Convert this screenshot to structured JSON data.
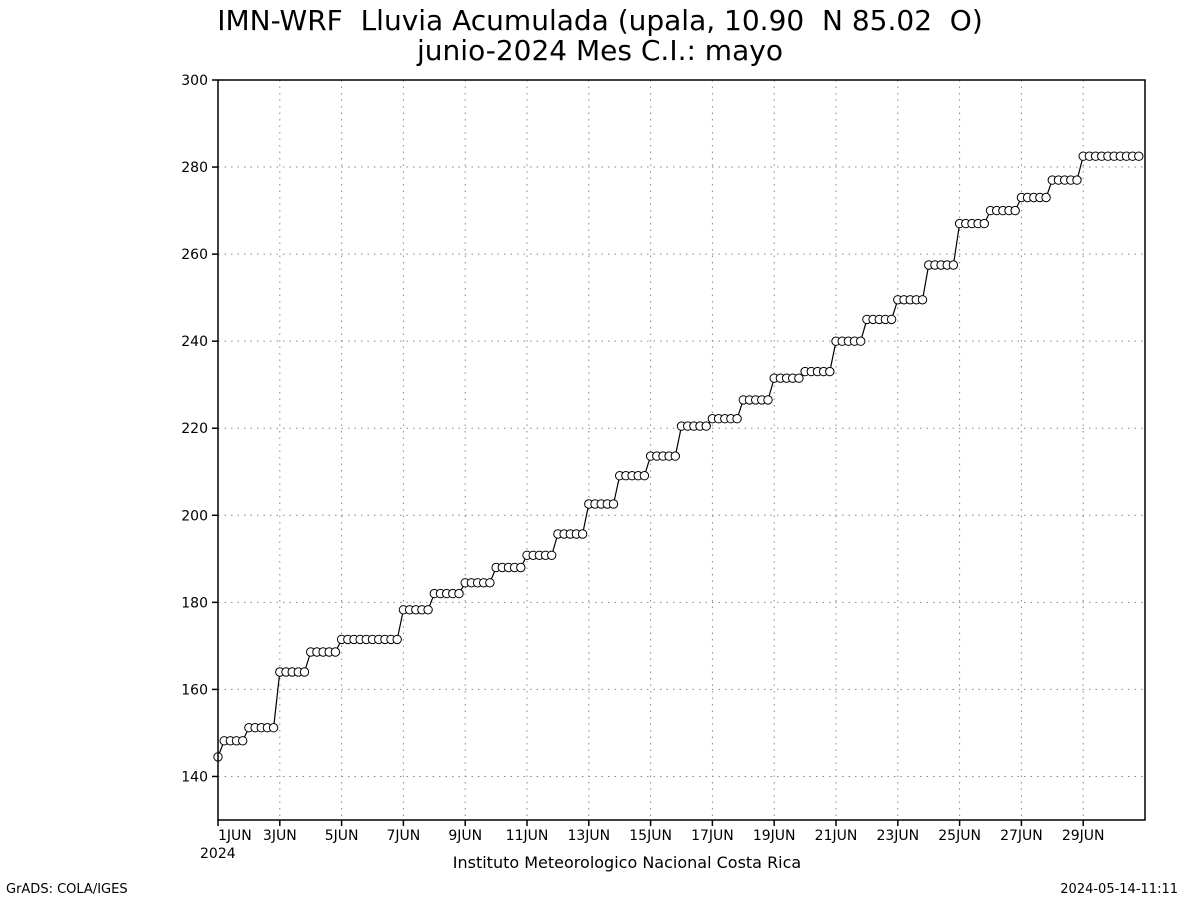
{
  "chart_data": {
    "type": "line",
    "title": "IMN-WRF  Lluvia Acumulada (upala, 10.90  N 85.02  O)",
    "subtitle": "junio-2024 Mes C.I.: mayo",
    "xlabel": "",
    "ylabel": "",
    "xlim": [
      1,
      31
    ],
    "ylim": [
      130,
      300
    ],
    "grid": true,
    "marker": "open-circle",
    "x_ticks": [
      {
        "day": 1,
        "label": "1JUN",
        "sublabel": "2024"
      },
      {
        "day": 3,
        "label": "3JUN"
      },
      {
        "day": 5,
        "label": "5JUN"
      },
      {
        "day": 7,
        "label": "7JUN"
      },
      {
        "day": 9,
        "label": "9JUN"
      },
      {
        "day": 11,
        "label": "11JUN"
      },
      {
        "day": 13,
        "label": "13JUN"
      },
      {
        "day": 15,
        "label": "15JUN"
      },
      {
        "day": 17,
        "label": "17JUN"
      },
      {
        "day": 19,
        "label": "19JUN"
      },
      {
        "day": 21,
        "label": "21JUN"
      },
      {
        "day": 23,
        "label": "23JUN"
      },
      {
        "day": 25,
        "label": "25JUN"
      },
      {
        "day": 27,
        "label": "27JUN"
      },
      {
        "day": 29,
        "label": "29JUN"
      }
    ],
    "y_ticks": [
      140,
      160,
      180,
      200,
      220,
      240,
      260,
      280,
      300
    ],
    "daily_start_values": [
      144.5,
      151.2,
      164.0,
      168.6,
      171.5,
      171.5,
      178.3,
      182.0,
      184.5,
      188.0,
      190.8,
      195.7,
      202.6,
      209.1,
      213.6,
      220.5,
      222.2,
      226.5,
      231.5,
      233.0,
      240.0,
      245.0,
      249.5,
      257.5,
      267.0,
      270.0,
      273.0,
      277.0,
      282.5,
      282.5
    ],
    "daily_end_values": [
      148.2,
      151.2,
      164.0,
      168.6,
      171.5,
      171.5,
      178.3,
      182.0,
      184.5,
      188.0,
      190.8,
      195.7,
      202.6,
      209.1,
      213.6,
      220.5,
      222.2,
      226.5,
      231.5,
      233.0,
      240.0,
      245.0,
      249.5,
      257.5,
      267.0,
      270.0,
      273.0,
      277.0,
      282.5,
      282.5
    ],
    "points_per_day": 5
  },
  "footer": "Instituto Meteorologico Nacional Costa Rica",
  "credit_left": "GrADS: COLA/IGES",
  "credit_right": "2024-05-14-11:11"
}
